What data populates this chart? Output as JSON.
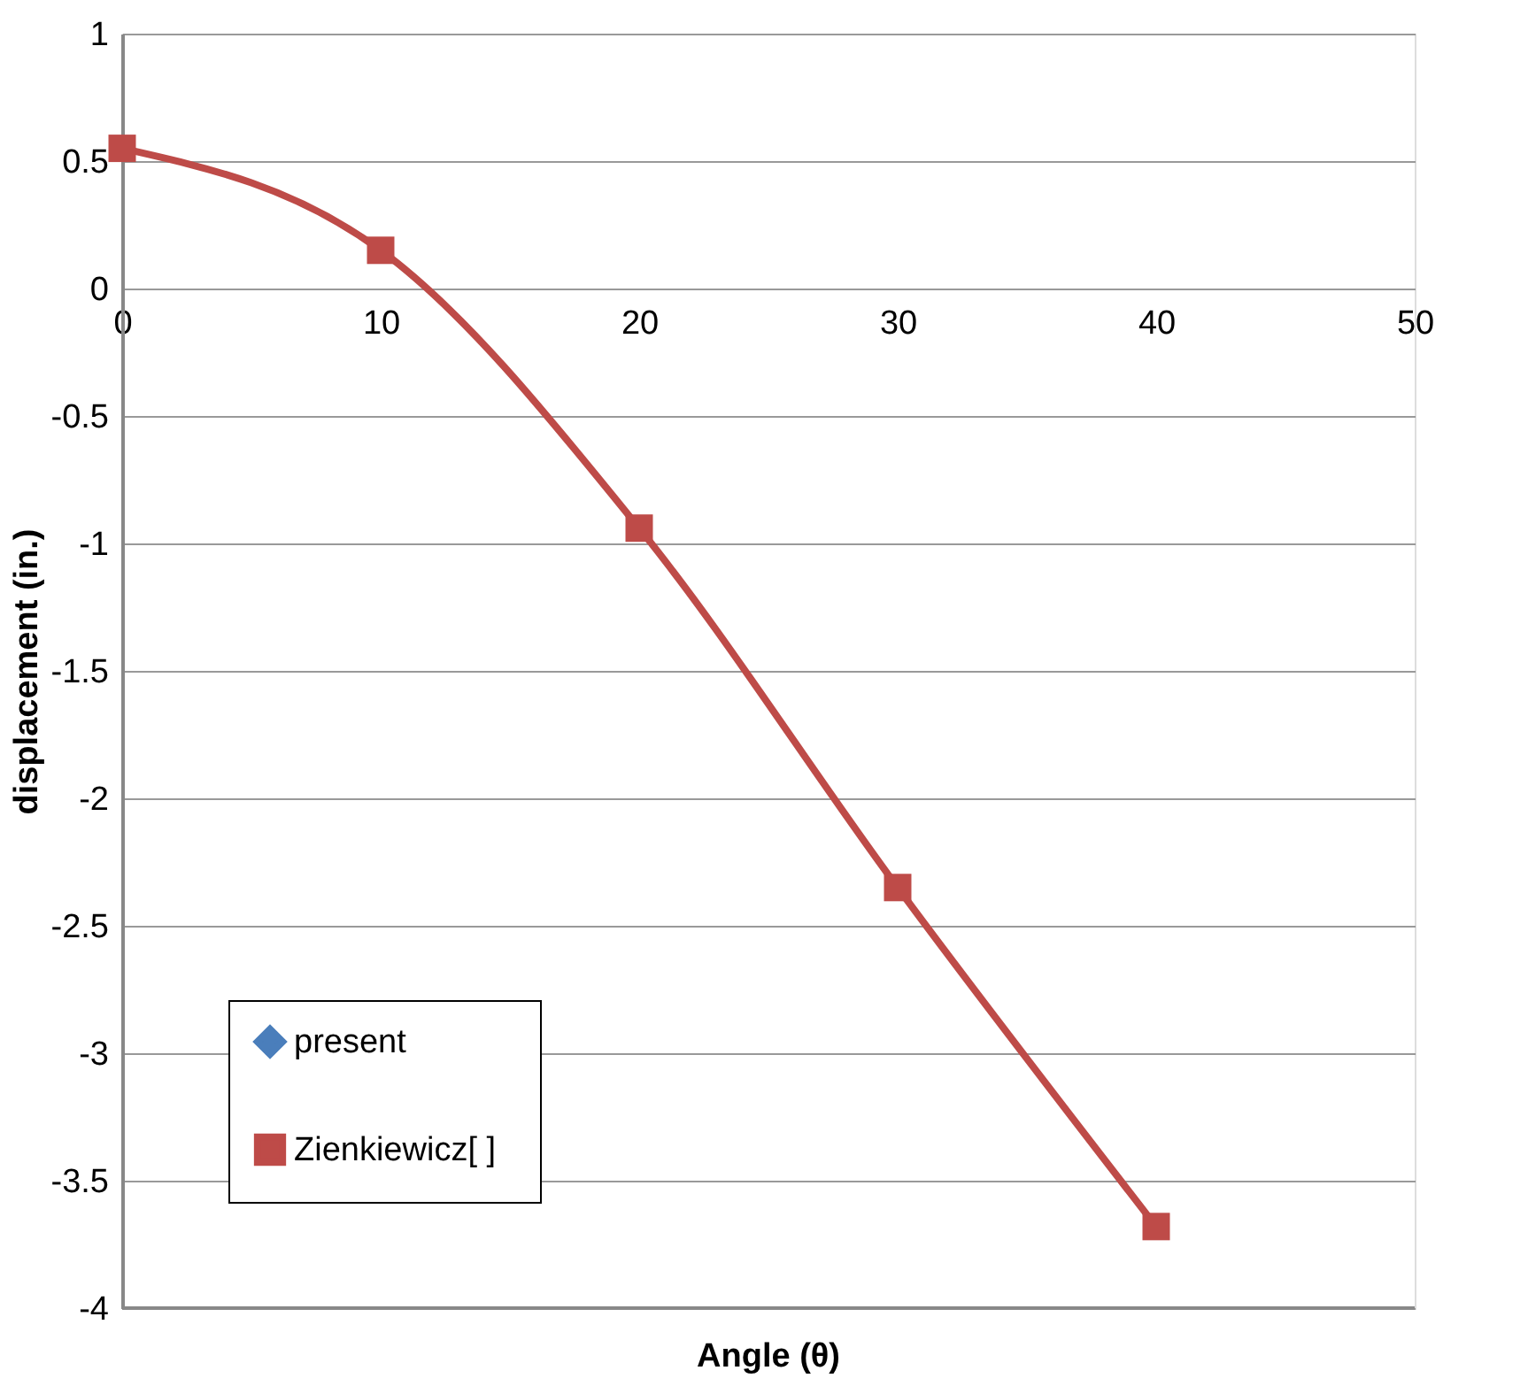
{
  "chart_data": {
    "type": "line",
    "xlabel": "Angle (θ)",
    "ylabel": "displacement (in.)",
    "x": [
      0,
      10,
      20,
      30,
      40
    ],
    "series": [
      {
        "name": "present",
        "color": "#4a7ebb",
        "marker": "diamond",
        "values": [
          null,
          null,
          null,
          null,
          null
        ]
      },
      {
        "name": "Zienkiewicz[   ]",
        "color": "#be4b48",
        "marker": "square",
        "values": [
          0.55,
          0.15,
          -0.94,
          -2.35,
          -3.68
        ]
      }
    ],
    "xlim": [
      0,
      50
    ],
    "xticks": [
      0,
      10,
      20,
      30,
      40,
      50
    ],
    "ylim": [
      -4,
      1
    ],
    "yticks": [
      -4,
      -3.5,
      -3,
      -2.5,
      -2,
      -1.5,
      -1,
      -0.5,
      0,
      0.5,
      1
    ],
    "grid": "y",
    "legend": "bottom left",
    "line_style": "solid"
  }
}
